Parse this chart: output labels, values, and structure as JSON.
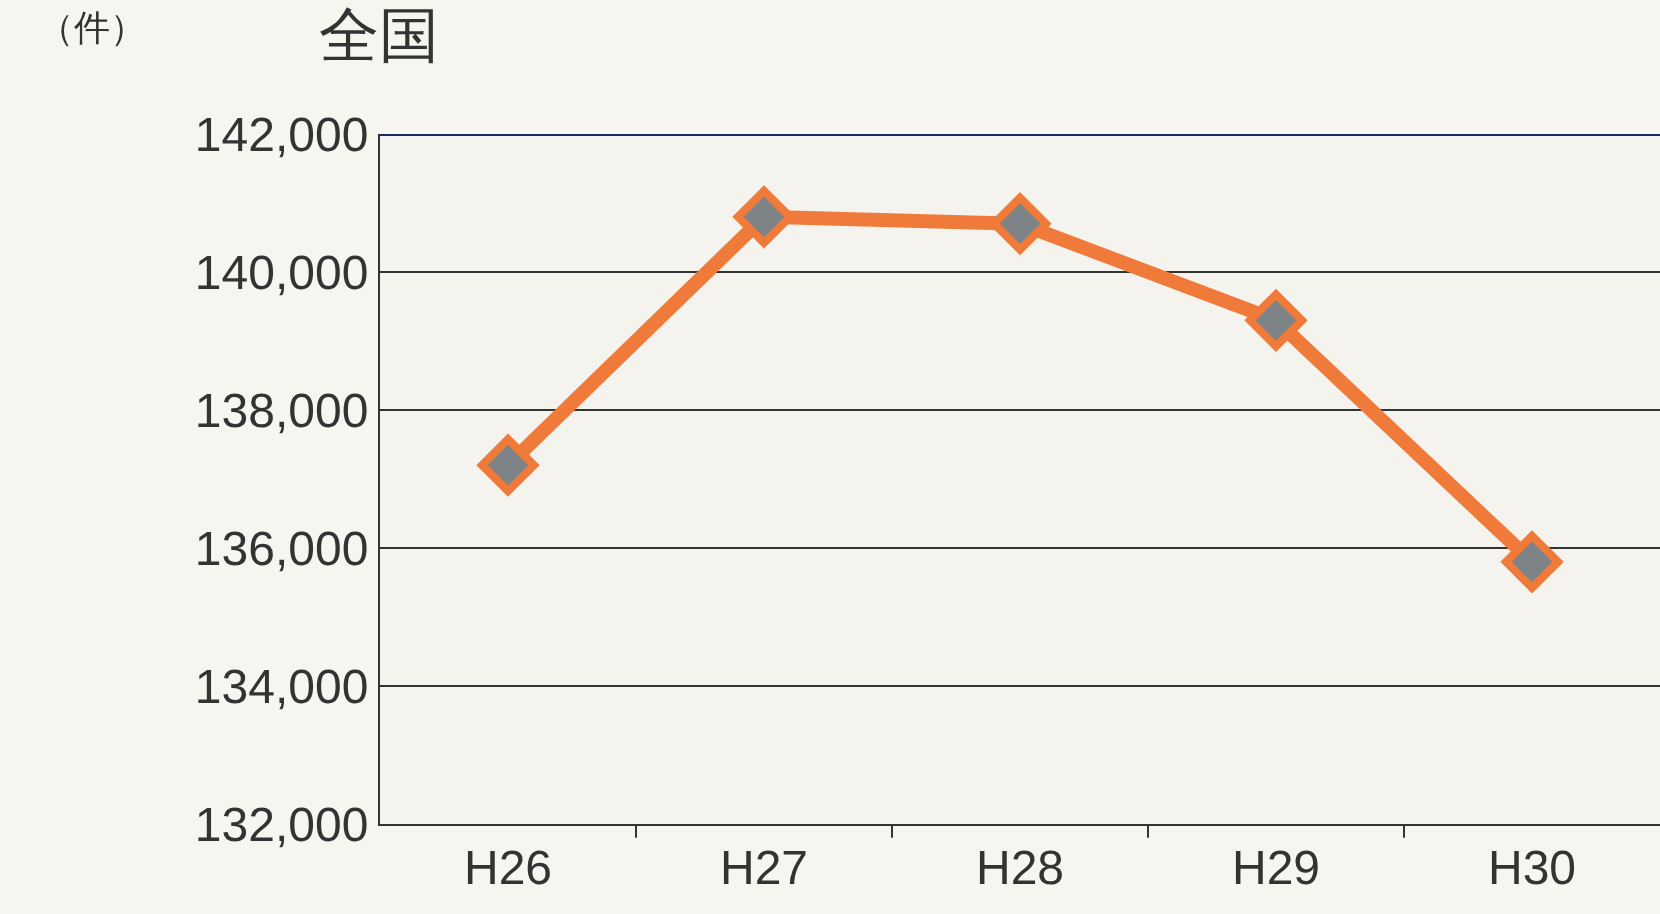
{
  "chart_data": {
    "type": "line",
    "title": "全国",
    "ylabel": "（件）",
    "categories": [
      "H26",
      "H27",
      "H28",
      "H29",
      "H30"
    ],
    "series": [
      {
        "color": "#f07a3a",
        "values": [
          137200,
          140800,
          140700,
          139300,
          135800
        ]
      }
    ],
    "ylim": [
      132000,
      142000
    ],
    "yticks": [
      {
        "value": 132000,
        "label": "132,000"
      },
      {
        "value": 134000,
        "label": "134,000"
      },
      {
        "value": 136000,
        "label": "136,000"
      },
      {
        "value": 138000,
        "label": "138,000"
      },
      {
        "value": 140000,
        "label": "140,000"
      },
      {
        "value": 142000,
        "label": "142,000"
      }
    ],
    "grid": "y",
    "marker": "diamond",
    "line_style": "solid"
  }
}
